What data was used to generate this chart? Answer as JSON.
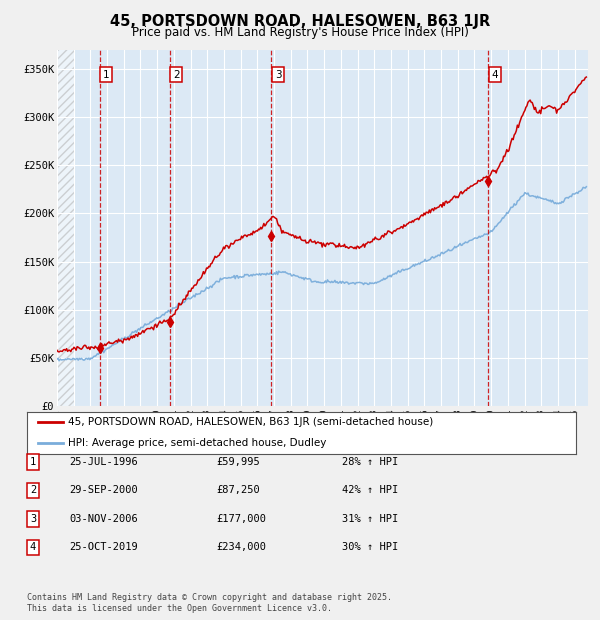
{
  "title": "45, PORTSDOWN ROAD, HALESOWEN, B63 1JR",
  "subtitle": "Price paid vs. HM Land Registry's House Price Index (HPI)",
  "ylim": [
    0,
    370000
  ],
  "xlim_start": 1994.0,
  "xlim_end": 2025.8,
  "yticks": [
    0,
    50000,
    100000,
    150000,
    200000,
    250000,
    300000,
    350000
  ],
  "ytick_labels": [
    "£0",
    "£50K",
    "£100K",
    "£150K",
    "£200K",
    "£250K",
    "£300K",
    "£350K"
  ],
  "plot_bg_color": "#dce9f5",
  "grid_color": "#ffffff",
  "sale_dates": [
    1996.56,
    2000.75,
    2006.84,
    2019.81
  ],
  "sale_prices": [
    59995,
    87250,
    177000,
    234000
  ],
  "sale_labels": [
    "1",
    "2",
    "3",
    "4"
  ],
  "legend_label_red": "45, PORTSDOWN ROAD, HALESOWEN, B63 1JR (semi-detached house)",
  "legend_label_blue": "HPI: Average price, semi-detached house, Dudley",
  "table_entries": [
    {
      "num": "1",
      "date": "25-JUL-1996",
      "price": "£59,995",
      "change": "28% ↑ HPI"
    },
    {
      "num": "2",
      "date": "29-SEP-2000",
      "price": "£87,250",
      "change": "42% ↑ HPI"
    },
    {
      "num": "3",
      "date": "03-NOV-2006",
      "price": "£177,000",
      "change": "31% ↑ HPI"
    },
    {
      "num": "4",
      "date": "25-OCT-2019",
      "price": "£234,000",
      "change": "30% ↑ HPI"
    }
  ],
  "footer": "Contains HM Land Registry data © Crown copyright and database right 2025.\nThis data is licensed under the Open Government Licence v3.0.",
  "red_color": "#cc0000",
  "blue_color": "#7aaddb",
  "hatch_end": 1995.0
}
